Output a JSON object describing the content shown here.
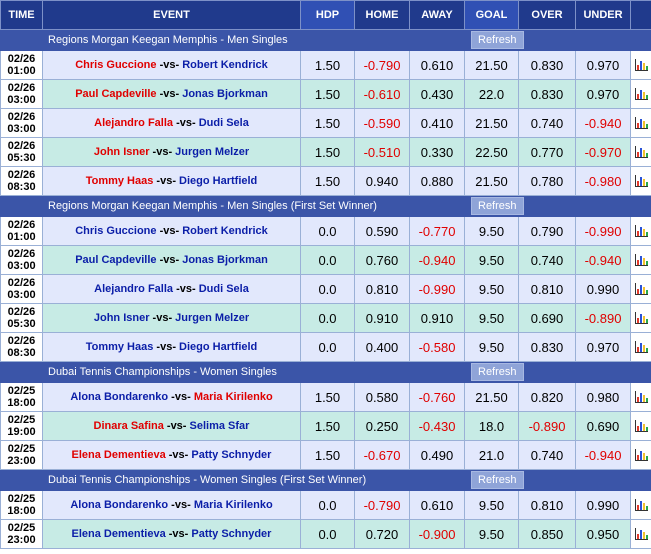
{
  "headers": [
    "TIME",
    "EVENT",
    "HDP",
    "HOME",
    "AWAY",
    "GOAL",
    "OVER",
    "UNDER"
  ],
  "refresh_label": "Refresh",
  "sections": [
    {
      "title": "Regions Morgan Keegan Memphis - Men Singles",
      "rows": [
        {
          "date": "02/26",
          "time": "01:00",
          "home": "Chris Guccione",
          "away": "Robert Kendrick",
          "fav": "home",
          "hdp": "1.50",
          "home_odds": "-0.790",
          "away_odds": "0.610",
          "goal": "21.50",
          "over": "0.830",
          "under": "0.970"
        },
        {
          "date": "02/26",
          "time": "03:00",
          "home": "Paul Capdeville",
          "away": "Jonas Bjorkman",
          "fav": "home",
          "hdp": "1.50",
          "home_odds": "-0.610",
          "away_odds": "0.430",
          "goal": "22.0",
          "over": "0.830",
          "under": "0.970"
        },
        {
          "date": "02/26",
          "time": "03:00",
          "home": "Alejandro Falla",
          "away": "Dudi Sela",
          "fav": "home",
          "hdp": "1.50",
          "home_odds": "-0.590",
          "away_odds": "0.410",
          "goal": "21.50",
          "over": "0.740",
          "under": "-0.940"
        },
        {
          "date": "02/26",
          "time": "05:30",
          "home": "John Isner",
          "away": "Jurgen Melzer",
          "fav": "home",
          "hdp": "1.50",
          "home_odds": "-0.510",
          "away_odds": "0.330",
          "goal": "22.50",
          "over": "0.770",
          "under": "-0.970"
        },
        {
          "date": "02/26",
          "time": "08:30",
          "home": "Tommy Haas",
          "away": "Diego Hartfield",
          "fav": "home",
          "hdp": "1.50",
          "home_odds": "0.940",
          "away_odds": "0.880",
          "goal": "21.50",
          "over": "0.780",
          "under": "-0.980"
        }
      ]
    },
    {
      "title": "Regions Morgan Keegan Memphis - Men Singles (First Set Winner)",
      "rows": [
        {
          "date": "02/26",
          "time": "01:00",
          "home": "Chris Guccione",
          "away": "Robert Kendrick",
          "fav": "none",
          "hdp": "0.0",
          "home_odds": "0.590",
          "away_odds": "-0.770",
          "goal": "9.50",
          "over": "0.790",
          "under": "-0.990"
        },
        {
          "date": "02/26",
          "time": "03:00",
          "home": "Paul Capdeville",
          "away": "Jonas Bjorkman",
          "fav": "none",
          "hdp": "0.0",
          "home_odds": "0.760",
          "away_odds": "-0.940",
          "goal": "9.50",
          "over": "0.740",
          "under": "-0.940"
        },
        {
          "date": "02/26",
          "time": "03:00",
          "home": "Alejandro Falla",
          "away": "Dudi Sela",
          "fav": "none",
          "hdp": "0.0",
          "home_odds": "0.810",
          "away_odds": "-0.990",
          "goal": "9.50",
          "over": "0.810",
          "under": "0.990"
        },
        {
          "date": "02/26",
          "time": "05:30",
          "home": "John Isner",
          "away": "Jurgen Melzer",
          "fav": "none",
          "hdp": "0.0",
          "home_odds": "0.910",
          "away_odds": "0.910",
          "goal": "9.50",
          "over": "0.690",
          "under": "-0.890"
        },
        {
          "date": "02/26",
          "time": "08:30",
          "home": "Tommy Haas",
          "away": "Diego Hartfield",
          "fav": "none",
          "hdp": "0.0",
          "home_odds": "0.400",
          "away_odds": "-0.580",
          "goal": "9.50",
          "over": "0.830",
          "under": "0.970"
        }
      ]
    },
    {
      "title": "Dubai Tennis Championships - Women Singles",
      "rows": [
        {
          "date": "02/25",
          "time": "18:00",
          "home": "Alona Bondarenko",
          "away": "Maria Kirilenko",
          "fav": "away",
          "hdp": "1.50",
          "home_odds": "0.580",
          "away_odds": "-0.760",
          "goal": "21.50",
          "over": "0.820",
          "under": "0.980"
        },
        {
          "date": "02/25",
          "time": "19:00",
          "home": "Dinara Safina",
          "away": "Selima Sfar",
          "fav": "home",
          "hdp": "1.50",
          "home_odds": "0.250",
          "away_odds": "-0.430",
          "goal": "18.0",
          "over": "-0.890",
          "under": "0.690"
        },
        {
          "date": "02/25",
          "time": "23:00",
          "home": "Elena Dementieva",
          "away": "Patty Schnyder",
          "fav": "home",
          "hdp": "1.50",
          "home_odds": "-0.670",
          "away_odds": "0.490",
          "goal": "21.0",
          "over": "0.740",
          "under": "-0.940"
        }
      ]
    },
    {
      "title": "Dubai Tennis Championships - Women Singles (First Set Winner)",
      "rows": [
        {
          "date": "02/25",
          "time": "18:00",
          "home": "Alona Bondarenko",
          "away": "Maria Kirilenko",
          "fav": "none",
          "hdp": "0.0",
          "home_odds": "-0.790",
          "away_odds": "0.610",
          "goal": "9.50",
          "over": "0.810",
          "under": "0.990"
        },
        {
          "date": "02/25",
          "time": "23:00",
          "home": "Elena Dementieva",
          "away": "Patty Schnyder",
          "fav": "none",
          "hdp": "0.0",
          "home_odds": "0.720",
          "away_odds": "-0.900",
          "goal": "9.50",
          "over": "0.850",
          "under": "0.950"
        }
      ]
    }
  ],
  "colors": {
    "header_bg": "#203a8c",
    "header_alt_bg": "#3050b4",
    "section_bg": "#3b55a8",
    "row_bg_a": "#e2e8fc",
    "row_bg_b": "#c7ebe5",
    "favorite_text": "#e00000",
    "underdog_text": "#0b1ea8",
    "negative_odds": "#e00000"
  },
  "row_icon": "bar-chart-icon"
}
